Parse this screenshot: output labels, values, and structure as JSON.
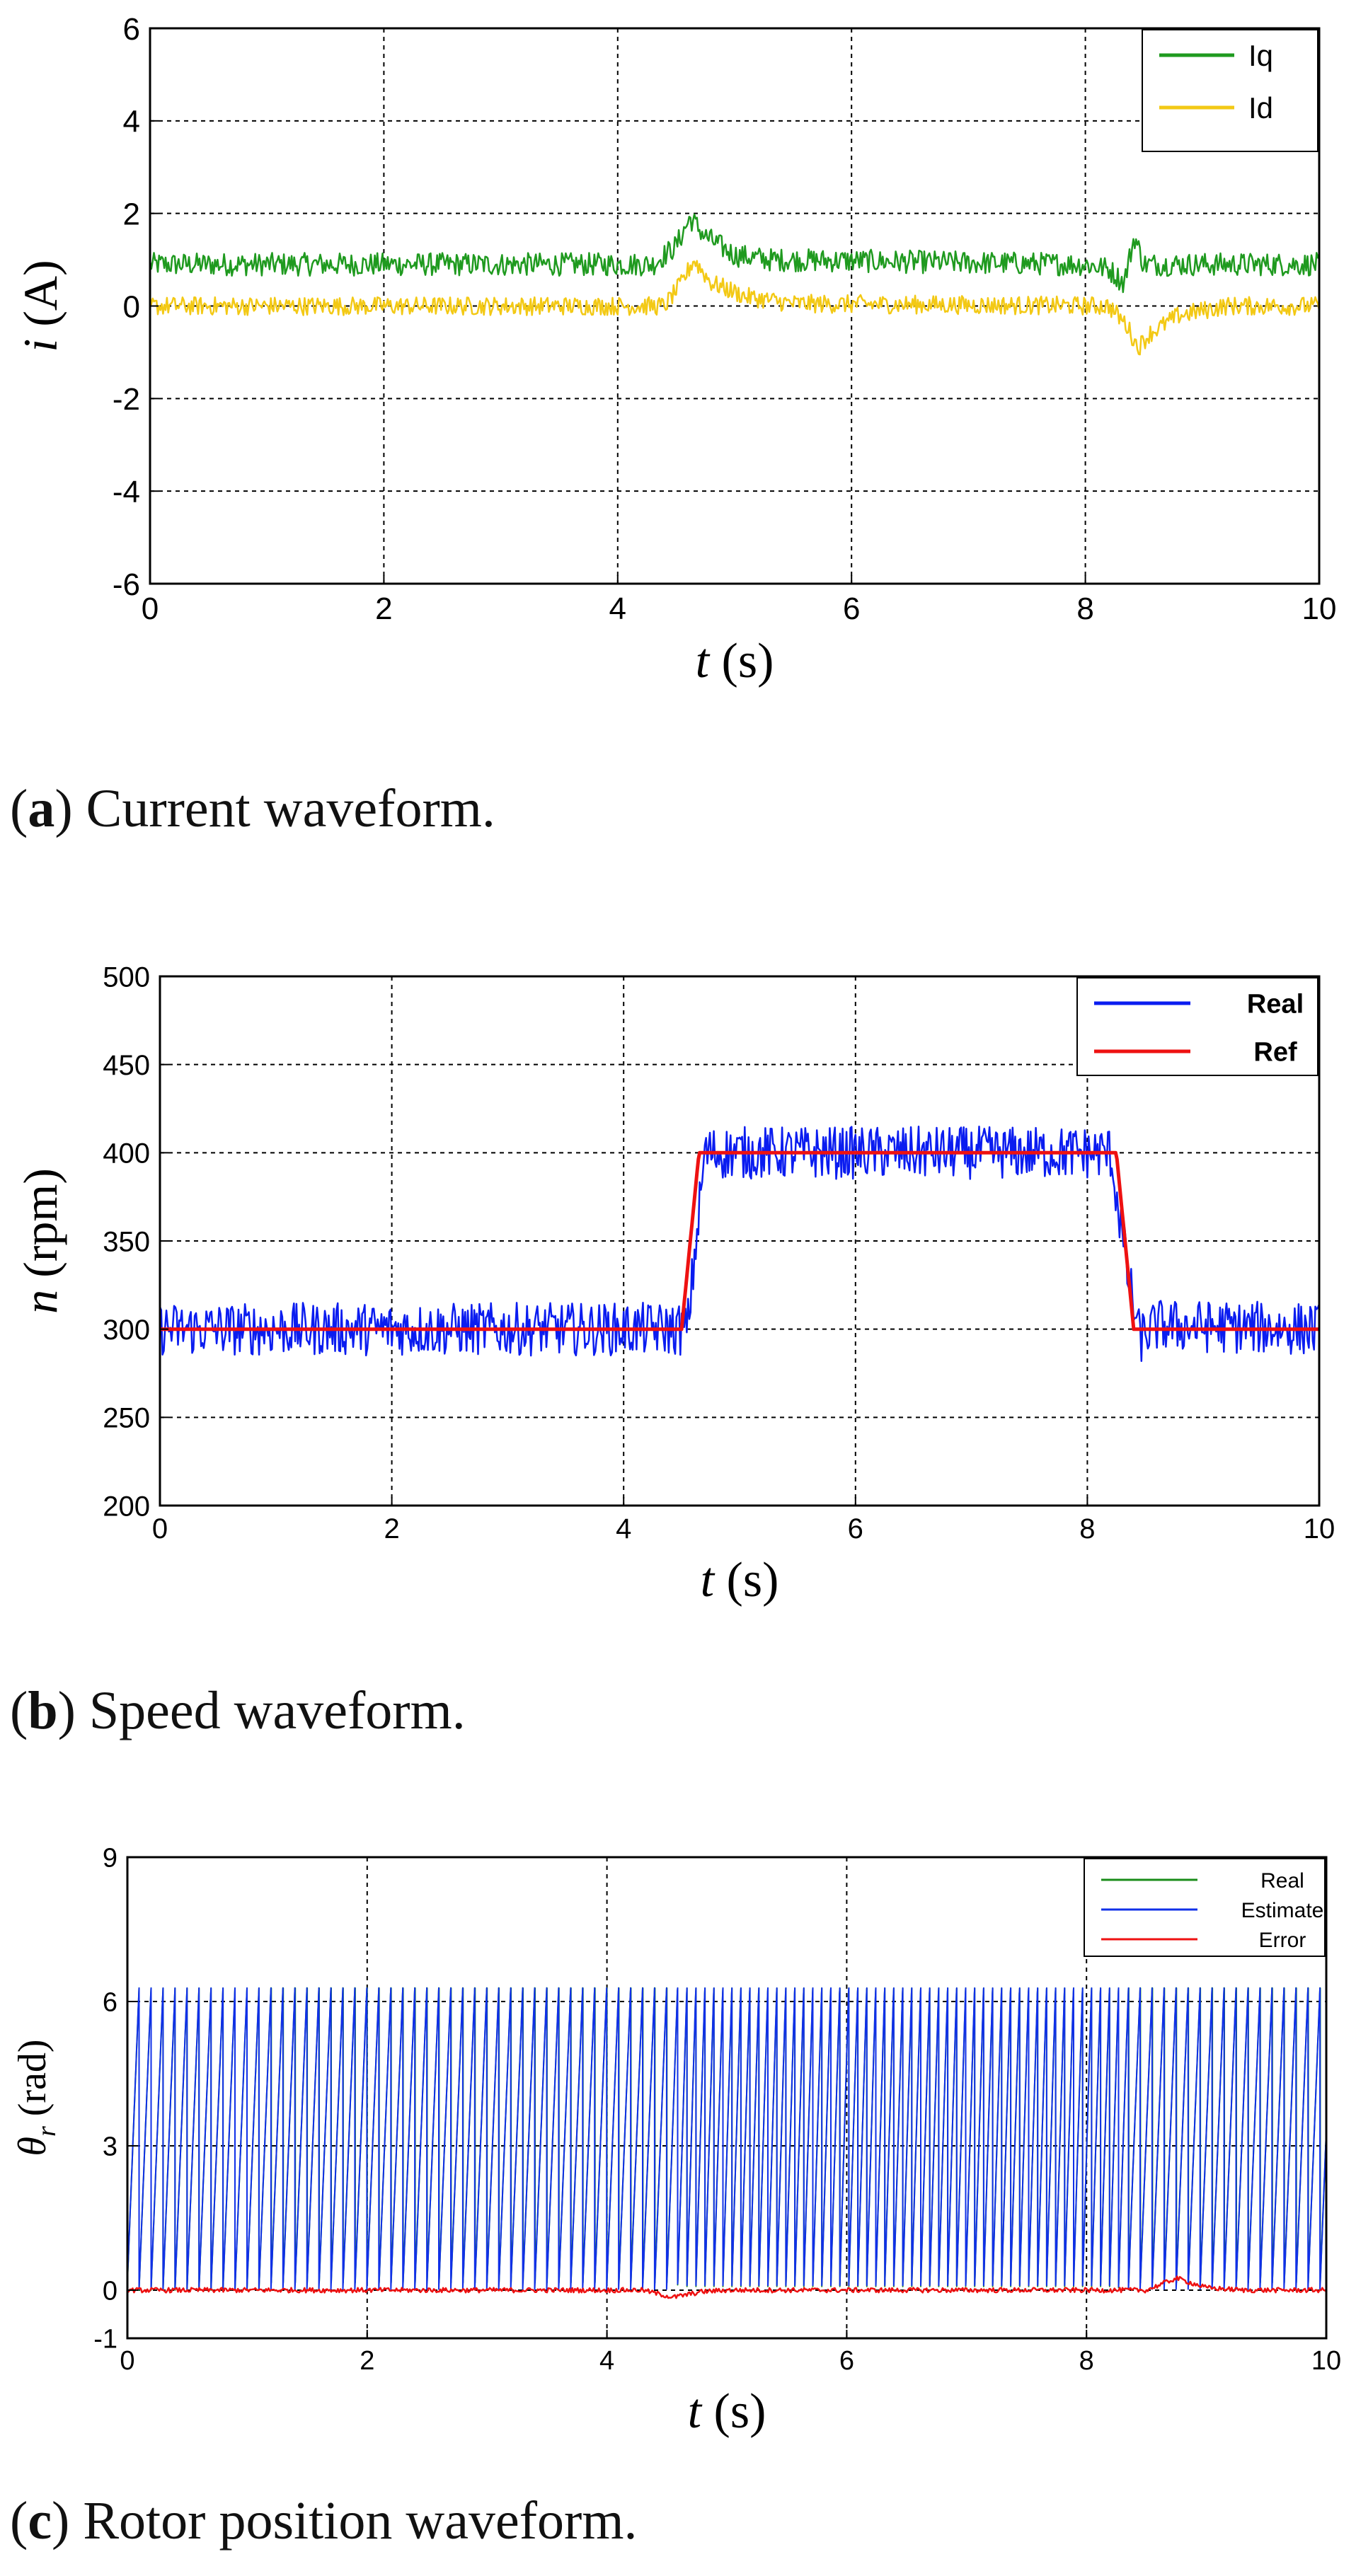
{
  "chart_data": [
    {
      "type": "line",
      "caption_letter": "a",
      "caption_text": "Current waveform.",
      "xlabel_italic": "t",
      "xlabel_unit": "(s)",
      "ylabel_italic": "i",
      "ylabel_unit": "(A)",
      "xlim": [
        0,
        10
      ],
      "ylim": [
        -6,
        6
      ],
      "xticks": [
        0,
        2,
        4,
        6,
        8,
        10
      ],
      "yticks": [
        -6,
        -4,
        -2,
        0,
        2,
        4,
        6
      ],
      "grid": true,
      "legend_position": "top-right",
      "series": [
        {
          "name": "Iq",
          "color": "#1f9a1f",
          "x": [
            0,
            4.3,
            4.5,
            4.62,
            4.75,
            5.0,
            5.3,
            8.0,
            8.2,
            8.33,
            8.42,
            8.5,
            8.7,
            10
          ],
          "y": [
            0.9,
            0.9,
            1.3,
            1.9,
            1.5,
            1.1,
            1.0,
            0.9,
            0.8,
            0.5,
            1.5,
            0.9,
            0.9,
            0.9
          ],
          "noise": 0.25
        },
        {
          "name": "Id",
          "color": "#f3c915",
          "x": [
            0,
            4.4,
            4.55,
            4.65,
            4.8,
            5.1,
            5.5,
            8.2,
            8.35,
            8.45,
            8.55,
            8.8,
            9.2,
            10
          ],
          "y": [
            0.0,
            0.0,
            0.5,
            1.0,
            0.5,
            0.2,
            0.05,
            0.0,
            -0.4,
            -0.9,
            -0.6,
            -0.2,
            0.0,
            0.0
          ],
          "noise": 0.2
        }
      ]
    },
    {
      "type": "line",
      "caption_letter": "b",
      "caption_text": "Speed waveform.",
      "xlabel_italic": "t",
      "xlabel_unit": "(s)",
      "ylabel_italic": "n",
      "ylabel_unit": "(rpm)",
      "xlim": [
        0,
        10
      ],
      "ylim": [
        200,
        500
      ],
      "xticks": [
        0,
        2,
        4,
        6,
        8,
        10
      ],
      "yticks": [
        200,
        250,
        300,
        350,
        400,
        450,
        500
      ],
      "grid": true,
      "legend_position": "top-right",
      "series": [
        {
          "name": "Real",
          "color": "#0a1cf0",
          "x": [
            0,
            4.55,
            4.7,
            8.2,
            8.35,
            8.45,
            8.6,
            10
          ],
          "y": [
            300,
            300,
            400,
            400,
            330,
            295,
            302,
            300
          ],
          "noise": 15
        },
        {
          "name": "Ref",
          "color": "#ee1111",
          "x": [
            0,
            4.5,
            4.65,
            8.25,
            8.4,
            10
          ],
          "y": [
            300,
            300,
            400,
            400,
            300,
            300
          ],
          "noise": 0
        }
      ]
    },
    {
      "type": "line",
      "caption_letter": "c",
      "caption_text": "Rotor position waveform.",
      "xlabel_italic": "t",
      "xlabel_unit": "(s)",
      "ylabel_italic": "θ",
      "ylabel_sub": "r",
      "ylabel_unit": "(rad)",
      "xlim": [
        0,
        10
      ],
      "ylim": [
        -1,
        9
      ],
      "xticks": [
        0,
        2,
        4,
        6,
        8,
        10
      ],
      "yticks": [
        -1,
        0,
        3,
        6,
        9
      ],
      "grid": true,
      "legend_position": "top-right",
      "series": [
        {
          "name": "Real",
          "color": "#1a8c1a",
          "kind": "sawtooth",
          "amplitude": 6.28
        },
        {
          "name": "Estimate",
          "color": "#1030e8",
          "kind": "sawtooth",
          "amplitude": 6.28
        },
        {
          "name": "Error",
          "color": "#ee1111",
          "x": [
            0,
            4.3,
            4.55,
            4.8,
            5.0,
            8.5,
            8.75,
            9.0,
            9.3,
            10
          ],
          "y": [
            0,
            0,
            -0.15,
            -0.03,
            0,
            0,
            0.25,
            0.05,
            0,
            0
          ],
          "noise": 0.05
        }
      ]
    }
  ]
}
